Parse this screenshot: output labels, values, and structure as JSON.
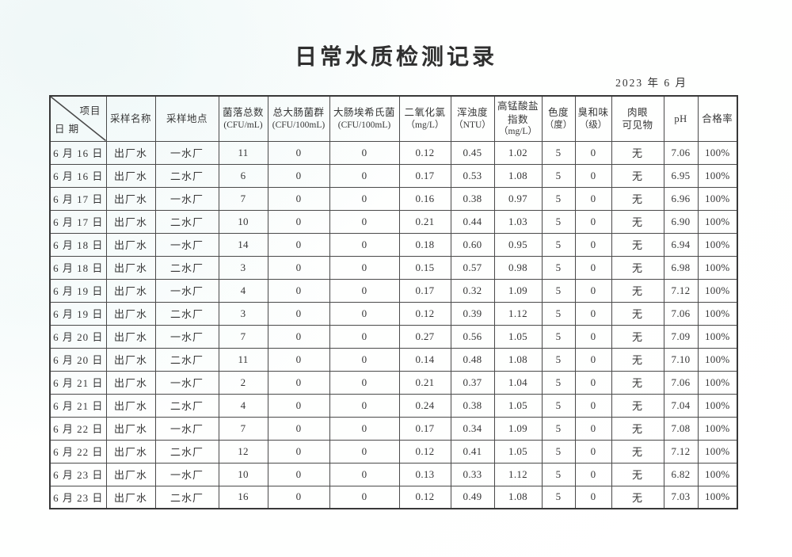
{
  "title": "日常水质检测记录",
  "date_line": "2023 年 6 月",
  "colors": {
    "paper": "#fdfefe",
    "ink": "#363636",
    "border": "#4a4a4a"
  },
  "table": {
    "corner": {
      "top": "项目",
      "bottom": "日 期"
    },
    "headers": [
      {
        "lines": [
          "采样名称"
        ]
      },
      {
        "lines": [
          "采样地点"
        ]
      },
      {
        "lines": [
          "菌落总数",
          "(CFU/mL)"
        ]
      },
      {
        "lines": [
          "总大肠菌群",
          "(CFU/100mL)"
        ]
      },
      {
        "lines": [
          "大肠埃希氏菌",
          "(CFU/100mL)"
        ]
      },
      {
        "lines": [
          "二氧化氯",
          "（mg/L）"
        ]
      },
      {
        "lines": [
          "浑浊度",
          "（NTU）"
        ]
      },
      {
        "lines": [
          "高锰酸盐",
          "指数",
          "（mg/L）"
        ]
      },
      {
        "lines": [
          "色度",
          "（度）"
        ]
      },
      {
        "lines": [
          "臭和味",
          "（级）"
        ]
      },
      {
        "lines": [
          "肉眼",
          "可见物"
        ]
      },
      {
        "lines": [
          "pH"
        ]
      },
      {
        "lines": [
          "合格率"
        ]
      }
    ],
    "rows": [
      [
        "6 月 16 日",
        "出厂水",
        "一水厂",
        "11",
        "0",
        "0",
        "0.12",
        "0.45",
        "1.02",
        "5",
        "0",
        "无",
        "7.06",
        "100%"
      ],
      [
        "6 月 16 日",
        "出厂水",
        "二水厂",
        "6",
        "0",
        "0",
        "0.17",
        "0.53",
        "1.08",
        "5",
        "0",
        "无",
        "6.95",
        "100%"
      ],
      [
        "6 月 17 日",
        "出厂水",
        "一水厂",
        "7",
        "0",
        "0",
        "0.16",
        "0.38",
        "0.97",
        "5",
        "0",
        "无",
        "6.96",
        "100%"
      ],
      [
        "6 月 17 日",
        "出厂水",
        "二水厂",
        "10",
        "0",
        "0",
        "0.21",
        "0.44",
        "1.03",
        "5",
        "0",
        "无",
        "6.90",
        "100%"
      ],
      [
        "6 月 18 日",
        "出厂水",
        "一水厂",
        "14",
        "0",
        "0",
        "0.18",
        "0.60",
        "0.95",
        "5",
        "0",
        "无",
        "6.94",
        "100%"
      ],
      [
        "6 月 18 日",
        "出厂水",
        "二水厂",
        "3",
        "0",
        "0",
        "0.15",
        "0.57",
        "0.98",
        "5",
        "0",
        "无",
        "6.98",
        "100%"
      ],
      [
        "6 月 19 日",
        "出厂水",
        "一水厂",
        "4",
        "0",
        "0",
        "0.17",
        "0.32",
        "1.09",
        "5",
        "0",
        "无",
        "7.12",
        "100%"
      ],
      [
        "6 月 19 日",
        "出厂水",
        "二水厂",
        "3",
        "0",
        "0",
        "0.12",
        "0.39",
        "1.12",
        "5",
        "0",
        "无",
        "7.06",
        "100%"
      ],
      [
        "6 月 20 日",
        "出厂水",
        "一水厂",
        "7",
        "0",
        "0",
        "0.27",
        "0.56",
        "1.05",
        "5",
        "0",
        "无",
        "7.09",
        "100%"
      ],
      [
        "6 月 20 日",
        "出厂水",
        "二水厂",
        "11",
        "0",
        "0",
        "0.14",
        "0.48",
        "1.08",
        "5",
        "0",
        "无",
        "7.10",
        "100%"
      ],
      [
        "6 月 21 日",
        "出厂水",
        "一水厂",
        "2",
        "0",
        "0",
        "0.21",
        "0.37",
        "1.04",
        "5",
        "0",
        "无",
        "7.06",
        "100%"
      ],
      [
        "6 月 21 日",
        "出厂水",
        "二水厂",
        "4",
        "0",
        "0",
        "0.24",
        "0.38",
        "1.05",
        "5",
        "0",
        "无",
        "7.04",
        "100%"
      ],
      [
        "6 月 22 日",
        "出厂水",
        "一水厂",
        "7",
        "0",
        "0",
        "0.17",
        "0.34",
        "1.09",
        "5",
        "0",
        "无",
        "7.08",
        "100%"
      ],
      [
        "6 月 22 日",
        "出厂水",
        "二水厂",
        "12",
        "0",
        "0",
        "0.12",
        "0.41",
        "1.05",
        "5",
        "0",
        "无",
        "7.12",
        "100%"
      ],
      [
        "6 月 23 日",
        "出厂水",
        "一水厂",
        "10",
        "0",
        "0",
        "0.13",
        "0.33",
        "1.12",
        "5",
        "0",
        "无",
        "6.82",
        "100%"
      ],
      [
        "6 月 23 日",
        "出厂水",
        "二水厂",
        "16",
        "0",
        "0",
        "0.12",
        "0.49",
        "1.08",
        "5",
        "0",
        "无",
        "7.03",
        "100%"
      ]
    ]
  }
}
